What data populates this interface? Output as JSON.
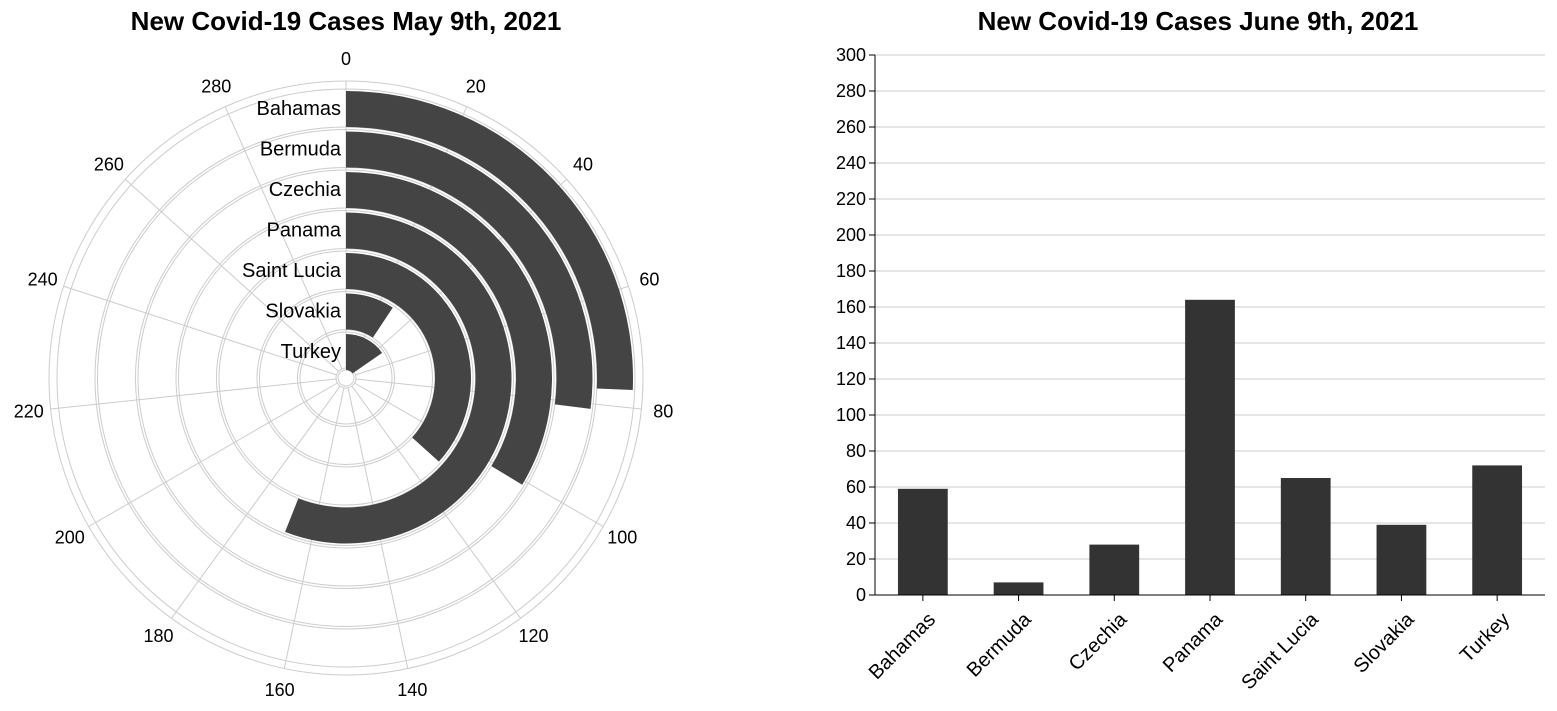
{
  "chart_data": [
    {
      "type": "radial-bar",
      "title": "New Covid-19 Cases May 9th, 2021",
      "categories": [
        "Bahamas",
        "Bermuda",
        "Czechia",
        "Panama",
        "Saint Lucia",
        "Slovakia",
        "Turkey"
      ],
      "values": [
        77,
        81,
        101,
        168,
        110,
        28,
        46
      ],
      "angular_range": [
        0,
        300
      ],
      "angular_ticks": [
        0,
        20,
        40,
        60,
        80,
        100,
        120,
        140,
        160,
        180,
        200,
        220,
        240,
        260,
        280
      ],
      "grid": true,
      "bar_color": "#444444"
    },
    {
      "type": "bar",
      "title": "New Covid-19 Cases June 9th, 2021",
      "categories": [
        "Bahamas",
        "Bermuda",
        "Czechia",
        "Panama",
        "Saint Lucia",
        "Slovakia",
        "Turkey"
      ],
      "values": [
        59,
        7,
        28,
        164,
        65,
        39,
        72
      ],
      "ylim": [
        0,
        300
      ],
      "yticks": [
        0,
        20,
        40,
        60,
        80,
        100,
        120,
        140,
        160,
        180,
        200,
        220,
        240,
        260,
        280,
        300
      ],
      "xlabel": "",
      "ylabel": "",
      "grid": true,
      "bar_color": "#333333"
    }
  ]
}
